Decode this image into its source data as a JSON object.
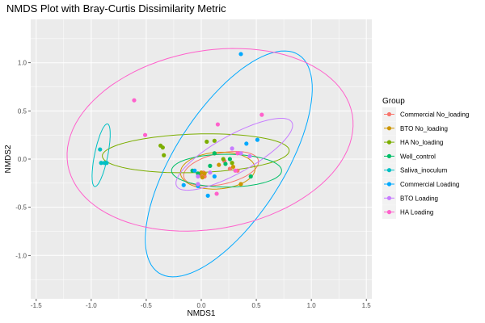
{
  "chart_data": {
    "type": "scatter",
    "title": "NMDS Plot with Bray-Curtis Dissimilarity Metric",
    "xlabel": "NMDS1",
    "ylabel": "NMDS2",
    "xlim": [
      -1.55,
      1.55
    ],
    "ylim": [
      -1.45,
      1.45
    ],
    "x_ticks": [
      -1.5,
      -1.0,
      -0.5,
      0.0,
      0.5,
      1.0,
      1.5
    ],
    "x_tick_labels": [
      "-1.5",
      "-1.0",
      "-0.5",
      "0.0",
      "0.5",
      "1.0",
      "1.5"
    ],
    "y_ticks": [
      -1.0,
      -0.5,
      0.0,
      0.5,
      1.0
    ],
    "y_tick_labels": [
      "-1.0",
      "-0.5",
      "0.0",
      "0.5",
      "1.0"
    ],
    "grid": true,
    "background": "#ebebeb",
    "legend": {
      "title": "Group",
      "position": "right"
    },
    "series": [
      {
        "name": "Commercial No_loading",
        "color": "#F8766D",
        "points": [
          [
            0.0,
            -0.16
          ],
          [
            0.02,
            -0.14
          ],
          [
            -0.02,
            -0.17
          ],
          [
            0.03,
            -0.18
          ],
          [
            0.26,
            -0.1
          ],
          [
            0.21,
            -0.02
          ],
          [
            0.33,
            -0.12
          ]
        ],
        "ellipse": {
          "cx": 0.18,
          "cy": -0.1,
          "rx": 0.35,
          "ry": 0.16,
          "angle_deg": 15
        }
      },
      {
        "name": "BTO No_loading",
        "color": "#CD9600",
        "points": [
          [
            0.0,
            -0.14
          ],
          [
            -0.02,
            -0.16
          ],
          [
            0.03,
            -0.15
          ],
          [
            0.01,
            -0.19
          ],
          [
            0.16,
            -0.06
          ],
          [
            0.36,
            -0.26
          ],
          [
            0.29,
            -0.08
          ]
        ],
        "ellipse": {
          "cx": 0.15,
          "cy": -0.12,
          "rx": 0.34,
          "ry": 0.19,
          "angle_deg": 5
        }
      },
      {
        "name": "HA No_loading",
        "color": "#7CAE00",
        "points": [
          [
            -0.37,
            0.14
          ],
          [
            -0.35,
            0.12
          ],
          [
            -0.34,
            0.04
          ],
          [
            0.05,
            0.18
          ],
          [
            0.12,
            0.19
          ],
          [
            0.12,
            0.06
          ],
          [
            0.2,
            0.0
          ],
          [
            0.28,
            -0.04
          ]
        ],
        "ellipse": {
          "cx": -0.05,
          "cy": 0.06,
          "rx": 0.85,
          "ry": 0.2,
          "angle_deg": 2
        }
      },
      {
        "name": "Well_control",
        "color": "#00BE67",
        "points": [
          [
            -0.08,
            -0.12
          ],
          [
            -0.03,
            -0.15
          ],
          [
            0.12,
            0.06
          ],
          [
            0.22,
            -0.05
          ],
          [
            0.45,
            -0.18
          ],
          [
            0.26,
            0.0
          ],
          [
            0.08,
            -0.07
          ]
        ],
        "ellipse": {
          "cx": 0.23,
          "cy": -0.12,
          "rx": 0.5,
          "ry": 0.17,
          "angle_deg": 0
        }
      },
      {
        "name": "Saliva_inoculum",
        "color": "#00BFC4",
        "points": [
          [
            -0.92,
            0.1
          ],
          [
            -0.91,
            -0.04
          ],
          [
            -0.88,
            -0.04
          ],
          [
            -0.86,
            -0.04
          ]
        ],
        "ellipse": {
          "cx": -0.91,
          "cy": 0.04,
          "rx": 0.33,
          "ry": 0.06,
          "angle_deg": 80
        }
      },
      {
        "name": "Commercial Loading",
        "color": "#00A9FF",
        "points": [
          [
            0.36,
            1.09
          ],
          [
            0.41,
            0.16
          ],
          [
            0.51,
            0.2
          ],
          [
            -0.06,
            -0.12
          ],
          [
            -0.16,
            -0.27
          ],
          [
            0.06,
            -0.38
          ],
          [
            -0.03,
            -0.28
          ],
          [
            0.12,
            -0.18
          ]
        ],
        "ellipse": {
          "cx": 0.25,
          "cy": -0.05,
          "rx": 1.3,
          "ry": 0.51,
          "angle_deg": 62
        }
      },
      {
        "name": "BTO Loading",
        "color": "#C77CFF",
        "points": [
          [
            0.28,
            0.11
          ],
          [
            -0.03,
            -0.26
          ],
          [
            0.36,
            0.06
          ],
          [
            0.44,
            0.03
          ],
          [
            -0.03,
            -0.18
          ],
          [
            0.08,
            -0.14
          ]
        ],
        "ellipse": {
          "cx": 0.3,
          "cy": 0.05,
          "rx": 0.62,
          "ry": 0.19,
          "angle_deg": 33
        }
      },
      {
        "name": "HA Loading",
        "color": "#FF61CC",
        "points": [
          [
            -0.61,
            0.61
          ],
          [
            -0.51,
            0.25
          ],
          [
            0.15,
            0.36
          ],
          [
            0.55,
            0.46
          ],
          [
            0.14,
            -0.36
          ],
          [
            0.33,
            0.06
          ],
          [
            0.31,
            -0.12
          ]
        ],
        "ellipse": {
          "cx": 0.08,
          "cy": 0.2,
          "rx": 1.32,
          "ry": 0.92,
          "angle_deg": 14
        }
      }
    ]
  }
}
